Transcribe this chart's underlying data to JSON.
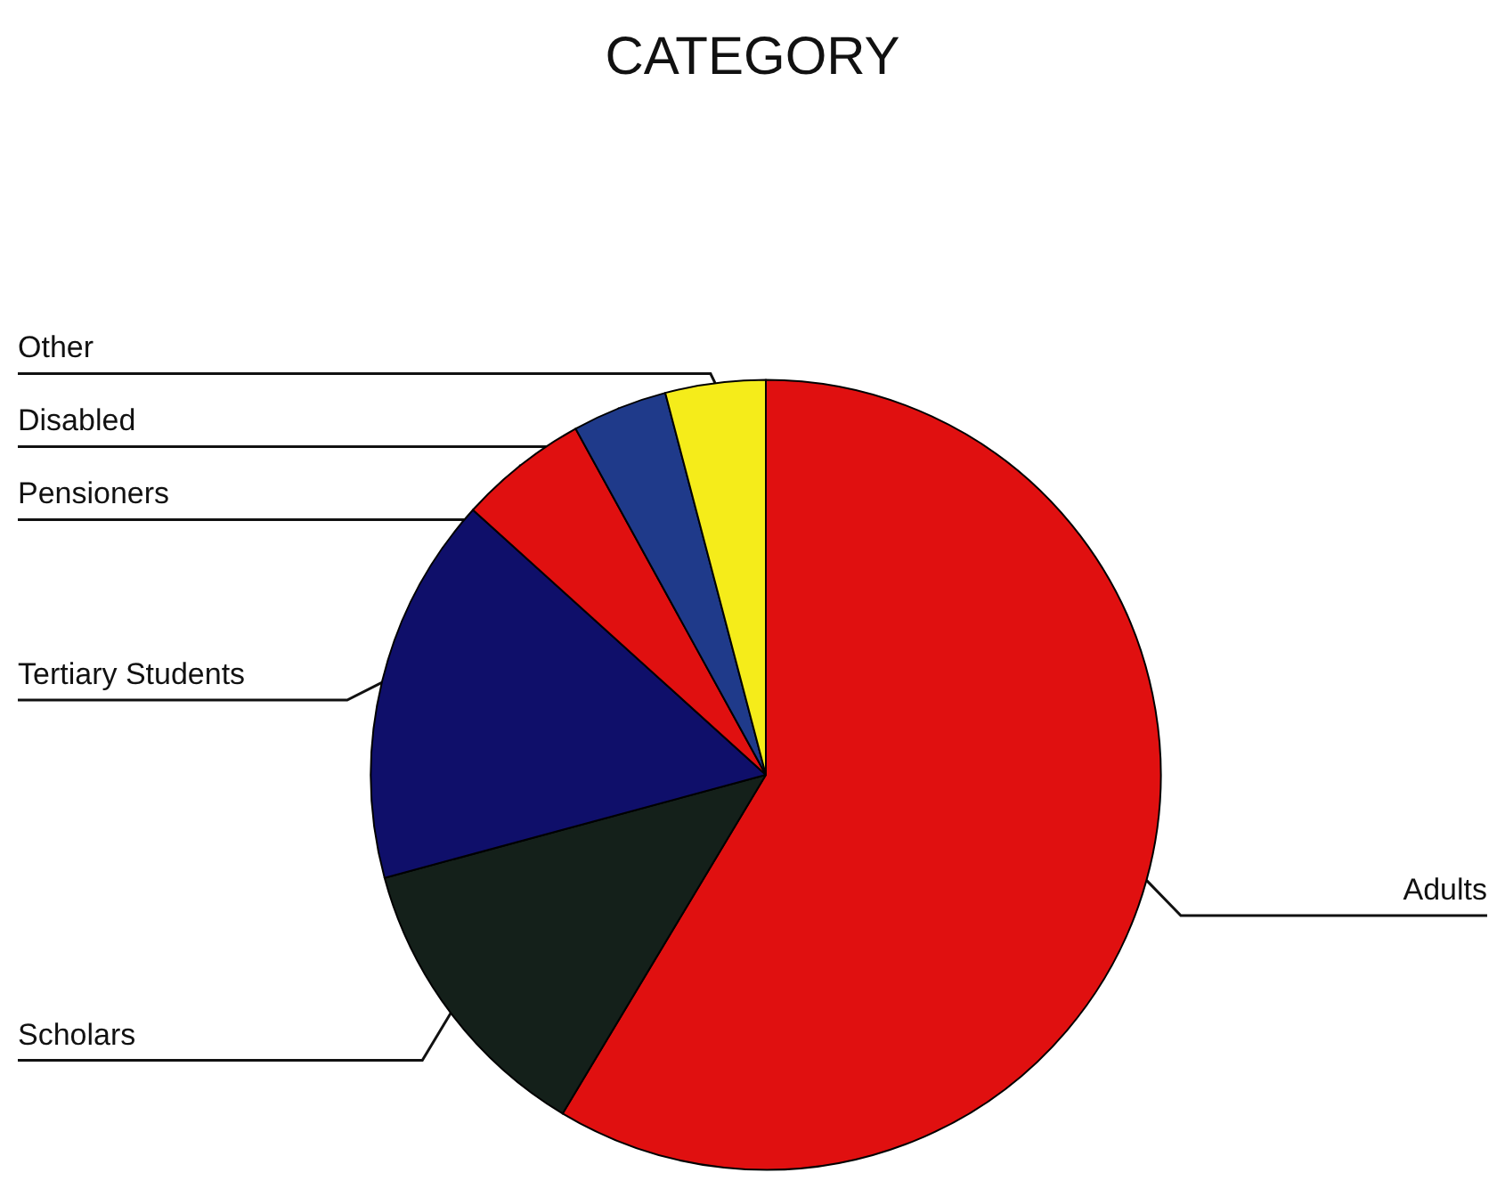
{
  "chart_data": {
    "type": "pie",
    "title": "CATEGORY",
    "categories": [
      "Adults",
      "Scholars",
      "Tertiary Students",
      "Pensioners",
      "Disabled",
      "Other"
    ],
    "values": [
      58.6,
      12.2,
      15.9,
      5.3,
      3.9,
      4.1
    ],
    "colors": [
      "#e01010",
      "#14201a",
      "#0f0f6a",
      "#e01010",
      "#1f3a8a",
      "#f5ec1a"
    ],
    "legend": false
  }
}
